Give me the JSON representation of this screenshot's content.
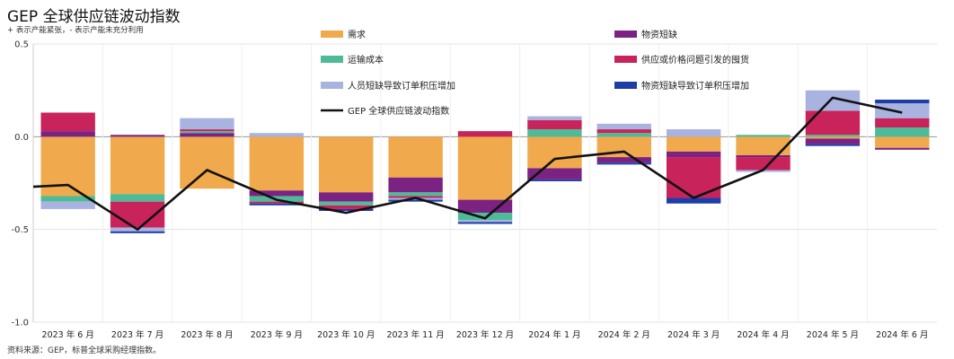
{
  "header": {
    "title": "GEP 全球供应链波动指数",
    "subtitle": "+ 表示产能紧张，- 表示产能未充分利用"
  },
  "footer": {
    "source": "资料来源：GEP，标普全球采购经理指数。"
  },
  "chart_data": {
    "type": "bar",
    "stacked": true,
    "title": "GEP 全球供应链波动指数",
    "subtitle": "+ 表示产能紧张，- 表示产能未充分利用",
    "categories": [
      "2023 年 6 月",
      "2023 年 7 月",
      "2023 年 8 月",
      "2023 年 9 月",
      "2023 年 10 月",
      "2023 年 11 月",
      "2023 年 12 月",
      "2024 年 1 月",
      "2024 年 2 月",
      "2024 年 3 月",
      "2024 年 4 月",
      "2024 年 5 月",
      "2024 年 6 月"
    ],
    "ylim": [
      -1.0,
      0.5
    ],
    "yticks": [
      0.5,
      0.0,
      -0.5,
      -1.0
    ],
    "ytick_labels": [
      "0.5",
      "0.0",
      "-0.5",
      "-1.0"
    ],
    "grid": true,
    "legend_position": "top",
    "series": [
      {
        "name": "需求",
        "color": "#F0A94C",
        "values": [
          -0.32,
          -0.31,
          -0.28,
          -0.29,
          -0.3,
          -0.22,
          -0.34,
          -0.17,
          -0.11,
          -0.08,
          -0.1,
          -0.01,
          -0.06
        ]
      },
      {
        "name": "物资短缺",
        "color": "#7B2283",
        "values": [
          0.03,
          0.01,
          0.02,
          -0.03,
          -0.05,
          -0.08,
          -0.07,
          -0.06,
          -0.03,
          -0.03,
          -0.01,
          -0.03,
          -0.01
        ]
      },
      {
        "name": "运输成本",
        "color": "#4DBB97",
        "values": [
          -0.03,
          -0.04,
          0.01,
          -0.03,
          -0.02,
          -0.02,
          -0.04,
          0.04,
          0.02,
          0.0,
          0.01,
          0.01,
          0.05
        ]
      },
      {
        "name": "供应或价格问题引发的囤货",
        "color": "#C8235A",
        "values": [
          0.1,
          -0.14,
          0.01,
          -0.01,
          -0.02,
          -0.01,
          0.03,
          0.05,
          0.02,
          -0.22,
          -0.07,
          0.13,
          0.05
        ]
      },
      {
        "name": "人员短缺导致订单积压增加",
        "color": "#A9B3DF",
        "values": [
          -0.04,
          -0.02,
          0.06,
          0.02,
          0.0,
          -0.01,
          -0.01,
          0.02,
          0.03,
          0.04,
          -0.01,
          0.11,
          0.08
        ]
      },
      {
        "name": "物资短缺导致订单积压增加",
        "color": "#1E3DA8",
        "values": [
          0.0,
          -0.01,
          0.0,
          -0.01,
          -0.01,
          -0.01,
          -0.01,
          -0.01,
          -0.01,
          -0.03,
          0.0,
          -0.01,
          0.02
        ]
      }
    ],
    "line": {
      "name": "GEP 全球供应链波动指数",
      "color": "#111111",
      "values": [
        -0.26,
        -0.5,
        -0.18,
        -0.34,
        -0.41,
        -0.33,
        -0.44,
        -0.12,
        -0.08,
        -0.33,
        -0.18,
        0.21,
        0.13
      ]
    }
  }
}
